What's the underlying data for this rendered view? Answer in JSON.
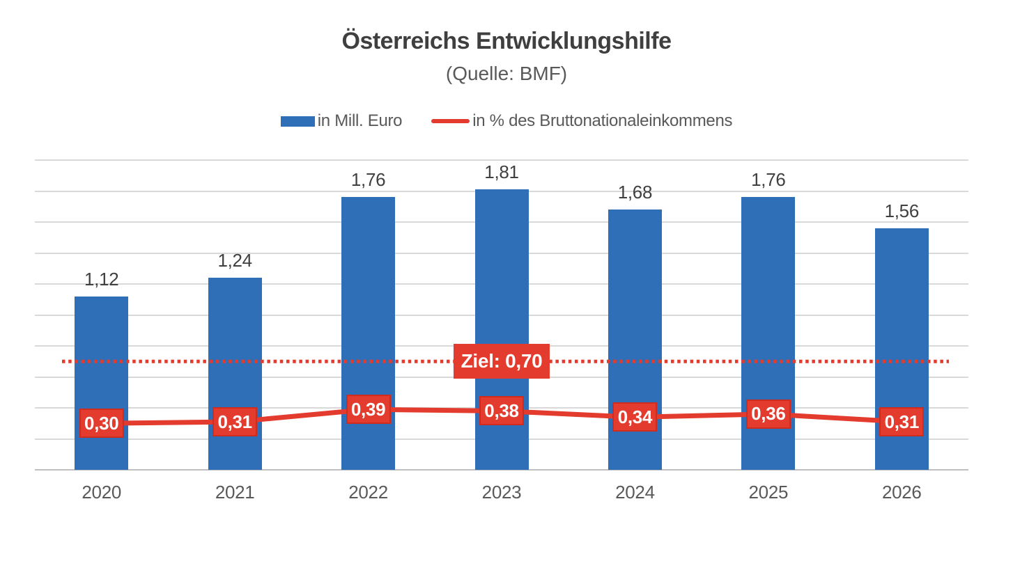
{
  "chart_data": {
    "type": "bar",
    "title": "Österreichs Entwicklungshilfe",
    "subtitle": "(Quelle: BMF)",
    "categories": [
      "2020",
      "2021",
      "2022",
      "2023",
      "2024",
      "2025",
      "2026"
    ],
    "series": [
      {
        "name": "in Mill. Euro",
        "type": "bar",
        "color": "#2e6fb7",
        "values": [
          1.12,
          1.24,
          1.76,
          1.81,
          1.68,
          1.76,
          1.56
        ],
        "labels": [
          "1,12",
          "1,24",
          "1,76",
          "1,81",
          "1,68",
          "1,76",
          "1,56"
        ]
      },
      {
        "name": "in % des Bruttonationaleinkommens",
        "type": "line",
        "color": "#e33b2d",
        "values": [
          0.3,
          0.31,
          0.39,
          0.38,
          0.34,
          0.36,
          0.31
        ],
        "labels": [
          "0,30",
          "0,31",
          "0,39",
          "0,38",
          "0,34",
          "0,36",
          "0,31"
        ]
      }
    ],
    "target_line": {
      "value": 0.7,
      "label": "Ziel: 0,70",
      "style": "dotted",
      "color": "#e33b2d"
    },
    "ylim": [
      0,
      2.0
    ],
    "gridline_step": 0.2,
    "grid": "horizontal",
    "legend_position": "top",
    "colors": {
      "bar": "#2e6fb7",
      "line": "#e33b2d",
      "grid": "#d9d9d9",
      "axis": "#bfbfbf",
      "title": "#3f3f3f",
      "axis_text": "#595959",
      "bar_label_text": "#404040",
      "point_label_text": "#ffffff"
    }
  }
}
